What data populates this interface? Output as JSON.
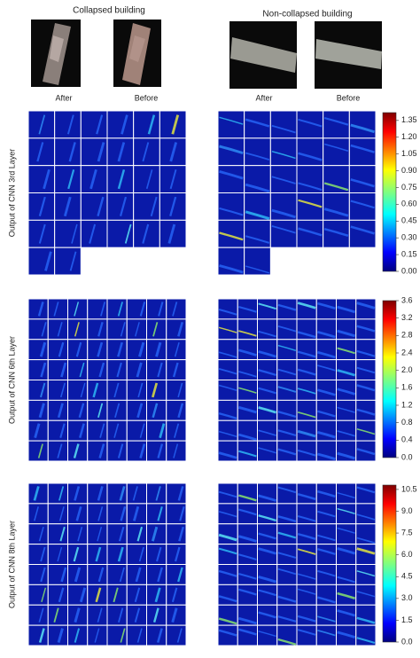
{
  "column_titles": [
    "Collapsed building",
    "Non-collapsed building"
  ],
  "image_labels": [
    [
      "After",
      "Before"
    ],
    [
      "After",
      "Before"
    ]
  ],
  "layers": [
    {
      "label": "Output of CNN 3rd Layer",
      "colorbar": {
        "lim": [
          0,
          1.42
        ],
        "ticks": [
          {
            "value": 0,
            "label": "0.00"
          },
          0.15,
          {
            "value": 0.3,
            "label": "0.30"
          },
          0.45,
          {
            "value": 0.6,
            "label": "0.60"
          },
          0.75,
          {
            "value": 0.9,
            "label": "0.90"
          },
          1.05,
          {
            "value": 1.2,
            "label": "1.20"
          },
          1.35
        ]
      }
    },
    {
      "label": "Output of CNN 6th Layer",
      "colorbar": {
        "lim": [
          0,
          3.6
        ],
        "ticks": [
          {
            "value": 0,
            "label": "0.0"
          },
          0.4,
          {
            "value": 0.8,
            "label": "0.8"
          },
          1.2,
          1.6,
          {
            "value": 2,
            "label": "2.0"
          },
          2.4,
          2.8,
          3.2,
          3.6
        ]
      }
    },
    {
      "label": "Output of CNN 8th Layer",
      "colorbar": {
        "lim": [
          0,
          10.8
        ],
        "ticks": [
          {
            "value": 0,
            "label": "0.0"
          },
          1.5,
          {
            "value": 3,
            "label": "3.0"
          },
          4.5,
          {
            "value": 6,
            "label": "6.0"
          },
          7.5,
          {
            "value": 9,
            "label": "9.0"
          },
          10.5
        ]
      }
    }
  ]
}
